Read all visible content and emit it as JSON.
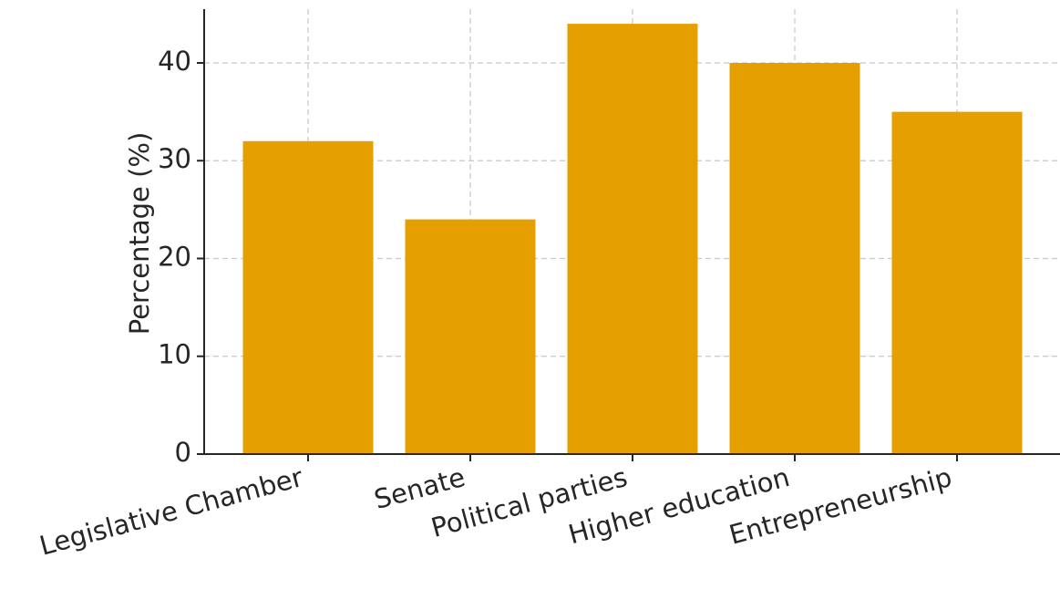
{
  "chart_data": {
    "type": "bar",
    "categories": [
      "Legislative Chamber",
      "Senate",
      "Political parties",
      "Higher education",
      "Entrepreneurship"
    ],
    "values": [
      32,
      24,
      44,
      40,
      35
    ],
    "title": "",
    "xlabel": "",
    "ylabel": "Percentage (%)",
    "ylim": [
      0,
      45.5
    ],
    "yticks": [
      0,
      10,
      20,
      30,
      40
    ],
    "grid": true,
    "bar_color": "#E69F00"
  }
}
